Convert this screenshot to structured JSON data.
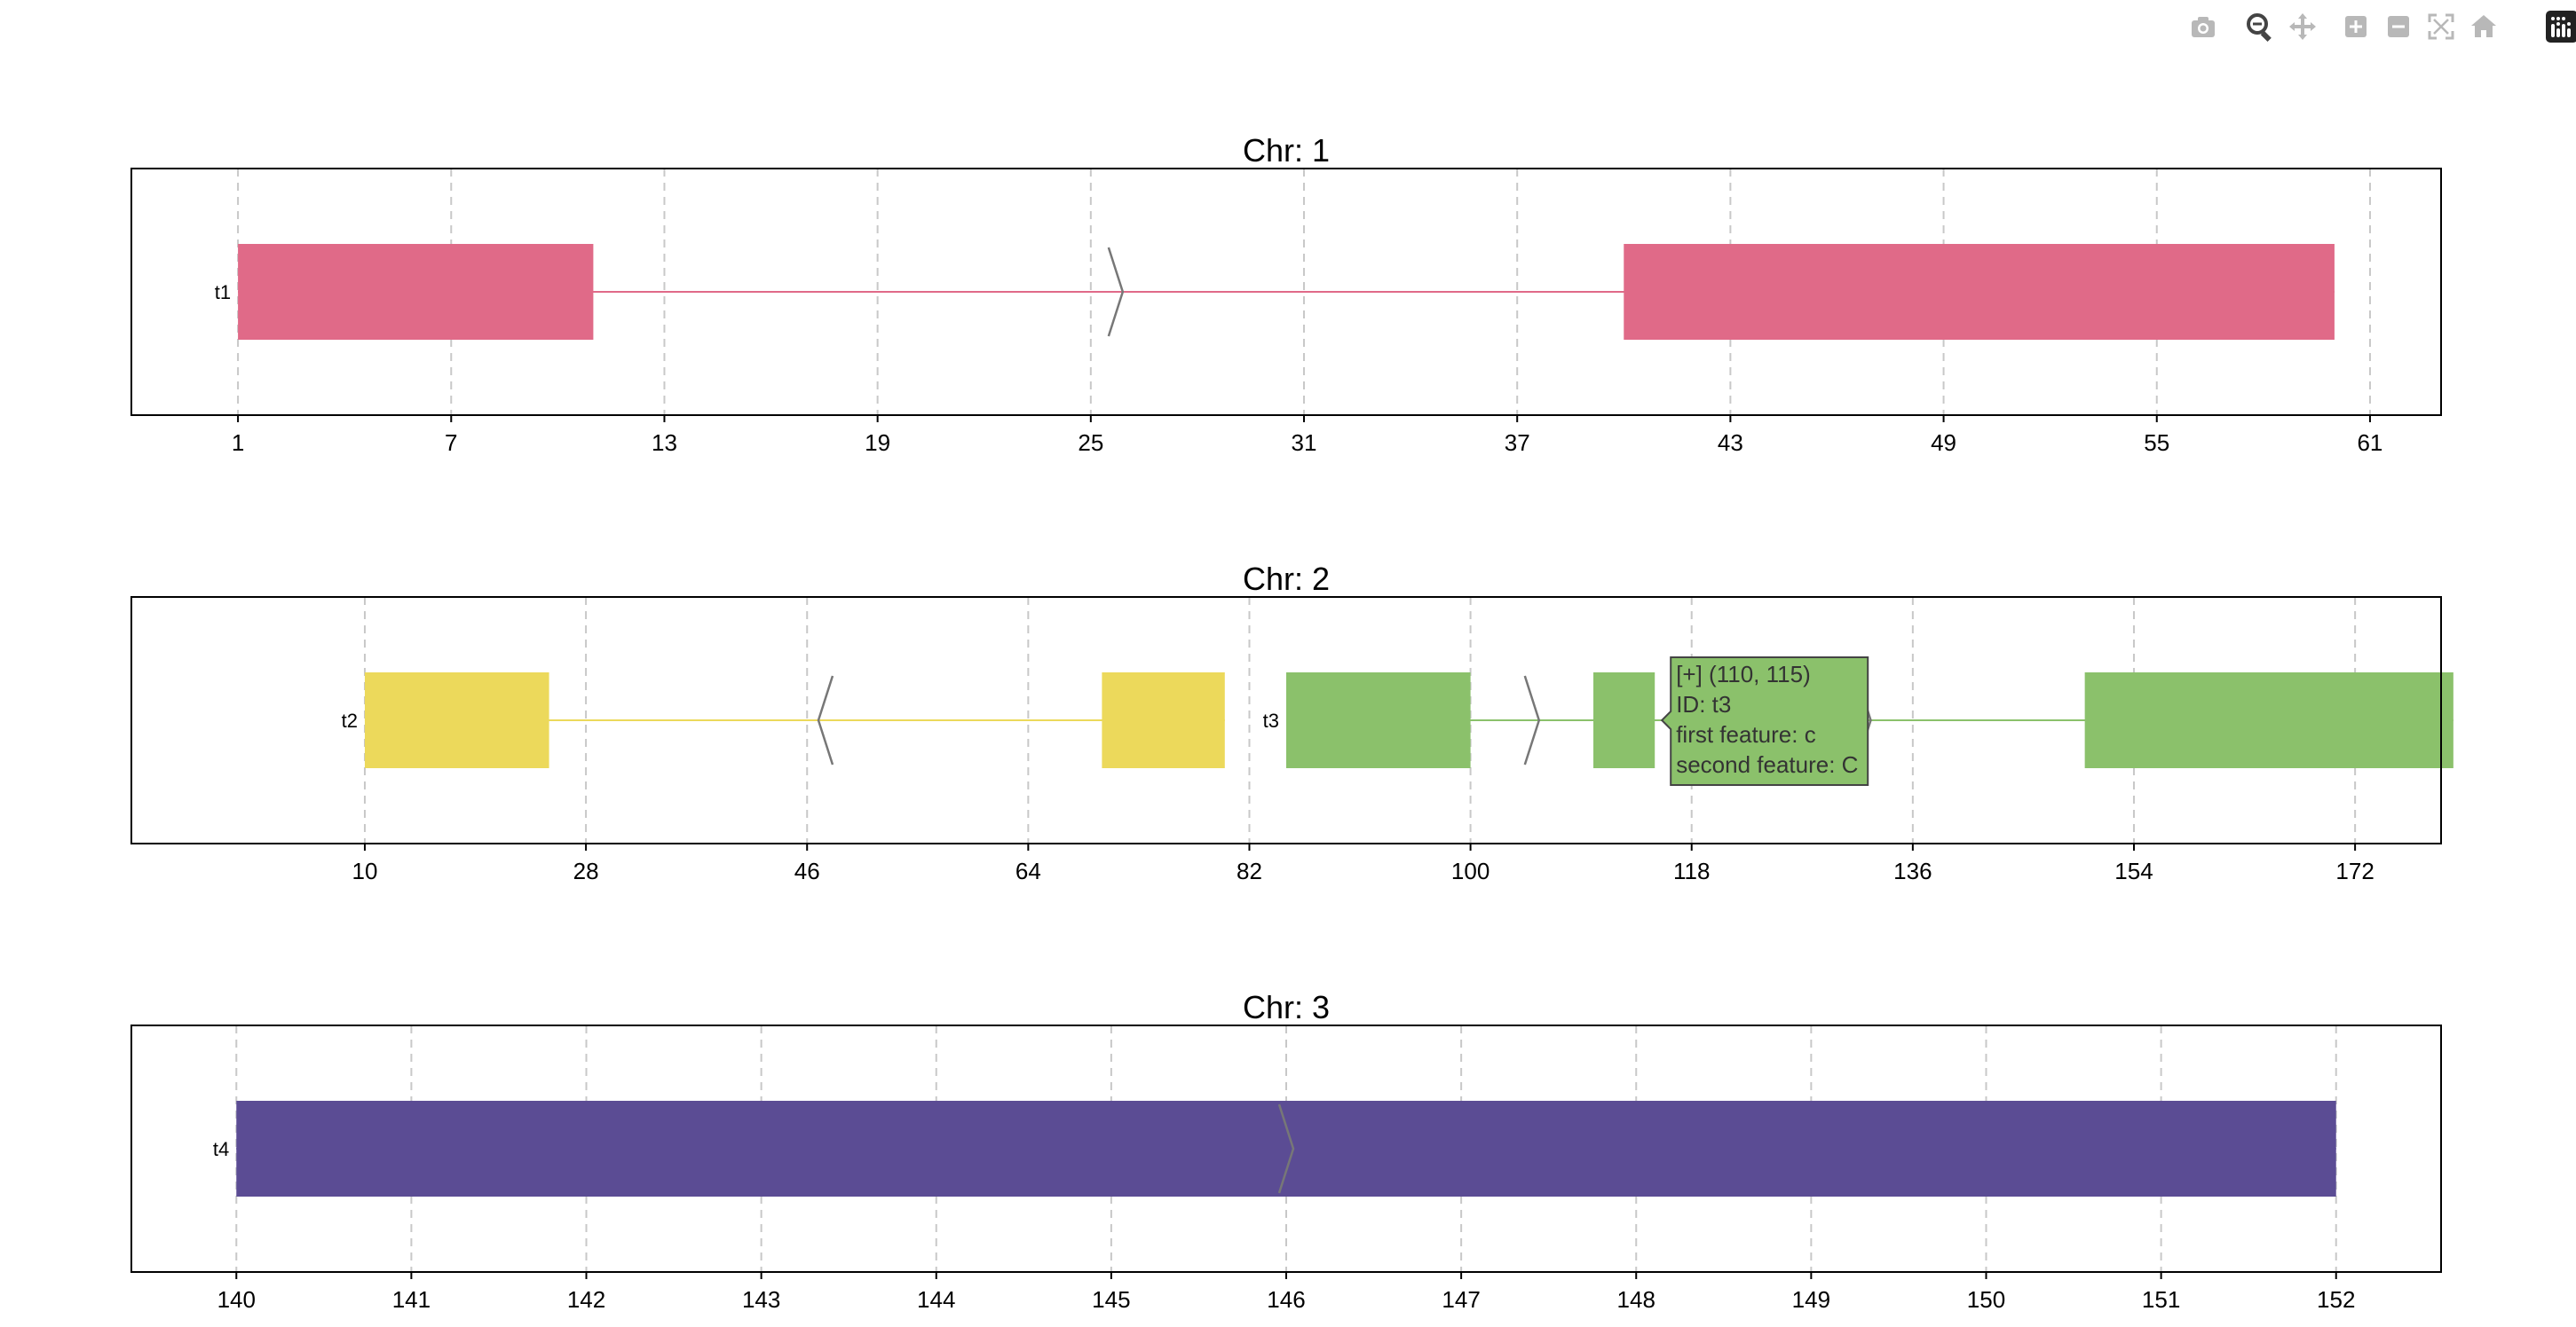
{
  "toolbar": {
    "buttons": [
      {
        "name": "camera-icon",
        "title": "Download plot as a png"
      },
      {
        "name": "zoom-icon",
        "title": "Zoom"
      },
      {
        "name": "pan-icon",
        "title": "Pan"
      },
      {
        "name": "zoom-in-icon",
        "title": "Zoom in"
      },
      {
        "name": "zoom-out-icon",
        "title": "Zoom out"
      },
      {
        "name": "autoscale-icon",
        "title": "Autoscale"
      },
      {
        "name": "reset-axes-icon",
        "title": "Reset axes"
      },
      {
        "name": "plotly-logo-icon",
        "title": "Produced with Plotly"
      }
    ]
  },
  "chart_data": [
    {
      "type": "gene-track",
      "title": "Chr: 1",
      "xlim": [
        -2,
        63
      ],
      "xticks": [
        1,
        7,
        13,
        19,
        25,
        31,
        37,
        43,
        49,
        55,
        61
      ],
      "grid": true,
      "transcripts": [
        {
          "label": "t1",
          "color": "#e06a88",
          "strand": "+",
          "start": 1,
          "end": 60,
          "exons": [
            [
              1,
              11
            ],
            [
              40,
              60
            ]
          ],
          "arrows": [
            25.7
          ]
        }
      ]
    },
    {
      "type": "gene-track",
      "title": "Chr: 2",
      "xlim": [
        -9,
        179
      ],
      "xticks": [
        10,
        28,
        46,
        64,
        82,
        100,
        118,
        136,
        154,
        172
      ],
      "grid": true,
      "transcripts": [
        {
          "label": "t2",
          "color": "#ecd95b",
          "strand": "-",
          "start": 10,
          "end": 80,
          "exons": [
            [
              10,
              25
            ],
            [
              70,
              80
            ]
          ],
          "arrows": [
            47.5
          ]
        },
        {
          "label": "t3",
          "color": "#8bc16b",
          "strand": "+",
          "start": 85,
          "end": 180,
          "exons": [
            [
              85,
              100
            ],
            [
              110,
              115
            ],
            [
              150,
              180
            ]
          ],
          "arrows": [
            105,
            132
          ]
        }
      ],
      "tooltip": {
        "lines": [
          "[+] (110, 115)",
          "ID: t3",
          "first feature: c",
          "second feature: C"
        ],
        "color": "#8bc16b"
      }
    },
    {
      "type": "gene-track",
      "title": "Chr: 3",
      "xlim": [
        139.4,
        152.6
      ],
      "xticks": [
        140,
        141,
        142,
        143,
        144,
        145,
        146,
        147,
        148,
        149,
        150,
        151,
        152
      ],
      "grid": true,
      "transcripts": [
        {
          "label": "t4",
          "color": "#5b4c94",
          "strand": "+",
          "start": 140,
          "end": 152,
          "exons": [
            [
              140,
              152
            ]
          ],
          "arrows": [
            146
          ]
        }
      ]
    }
  ]
}
